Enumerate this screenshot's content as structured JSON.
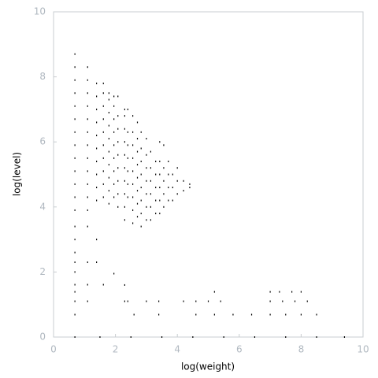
{
  "chart_data": {
    "type": "scatter",
    "x_label": "log(weight)",
    "y_label": "log(level)",
    "color": "#000000",
    "xlim": [
      0,
      10
    ],
    "ylim": [
      0,
      10
    ],
    "xticks": [
      0,
      2,
      4,
      6,
      8,
      10
    ],
    "yticks": [
      0,
      2,
      4,
      6,
      8,
      10
    ],
    "x": [
      0.69,
      0.69,
      0.69,
      0.69,
      0.69,
      0.69,
      0.69,
      0.69,
      0.69,
      0.69,
      0.69,
      0.69,
      0.69,
      0.69,
      0.69,
      0.69,
      0.69,
      0.69,
      0.69,
      0.69,
      0.69,
      0.69,
      1.1,
      1.1,
      1.1,
      1.1,
      1.1,
      1.1,
      1.1,
      1.1,
      1.1,
      1.1,
      1.1,
      1.1,
      1.1,
      1.1,
      1.1,
      1.1,
      1.39,
      1.39,
      1.39,
      1.39,
      1.39,
      1.39,
      1.39,
      1.39,
      1.39,
      1.39,
      1.39,
      1.39,
      1.61,
      1.61,
      1.61,
      1.61,
      1.61,
      1.61,
      1.61,
      1.61,
      1.61,
      1.61,
      1.61,
      1.79,
      1.79,
      1.79,
      1.79,
      1.79,
      1.79,
      1.79,
      1.79,
      1.79,
      1.79,
      1.95,
      1.95,
      1.95,
      1.95,
      1.95,
      1.95,
      1.95,
      1.95,
      1.95,
      1.95,
      2.08,
      2.08,
      2.08,
      2.08,
      2.08,
      2.08,
      2.08,
      2.08,
      2.08,
      2.3,
      2.3,
      2.3,
      2.3,
      2.3,
      2.3,
      2.3,
      2.3,
      2.3,
      2.3,
      2.4,
      2.4,
      2.4,
      2.4,
      2.4,
      2.4,
      2.4,
      2.4,
      2.56,
      2.56,
      2.56,
      2.56,
      2.56,
      2.56,
      2.56,
      2.56,
      2.56,
      2.71,
      2.71,
      2.71,
      2.71,
      2.71,
      2.71,
      2.71,
      2.71,
      2.83,
      2.83,
      2.83,
      2.83,
      2.83,
      2.83,
      2.83,
      2.83,
      3.0,
      3.0,
      3.0,
      3.0,
      3.0,
      3.0,
      3.0,
      3.14,
      3.14,
      3.14,
      3.14,
      3.14,
      3.14,
      3.3,
      3.3,
      3.3,
      3.3,
      3.3,
      3.43,
      3.43,
      3.43,
      3.43,
      3.43,
      3.43,
      3.56,
      3.56,
      3.56,
      3.56,
      3.56,
      3.71,
      3.71,
      3.71,
      3.71,
      3.85,
      3.85,
      3.85,
      4.0,
      4.0,
      4.0,
      4.2,
      4.2,
      4.4,
      4.4,
      2.3,
      2.3,
      3.0,
      3.4,
      4.2,
      4.6,
      5.0,
      5.4,
      5.2,
      7.0,
      7.3,
      7.7,
      8.0,
      7.0,
      7.4,
      7.8,
      8.2,
      7.0,
      7.5,
      8.0,
      8.5,
      4.6,
      5.2,
      5.8,
      6.4,
      2.6,
      3.4,
      0.69,
      1.5,
      2.5,
      3.5,
      4.5,
      5.5,
      6.5,
      7.5,
      8.5,
      9.4
    ],
    "values": [
      3.9,
      4.3,
      4.7,
      5.1,
      5.5,
      5.9,
      6.3,
      6.7,
      7.1,
      7.5,
      7.9,
      8.3,
      8.7,
      0.69,
      1.1,
      1.39,
      1.61,
      2.0,
      2.3,
      2.6,
      3.0,
      3.4,
      3.9,
      4.3,
      4.7,
      5.1,
      5.5,
      5.9,
      6.3,
      6.7,
      7.1,
      7.5,
      7.9,
      8.3,
      1.1,
      1.61,
      2.3,
      3.4,
      4.2,
      4.6,
      5.0,
      5.4,
      5.8,
      6.2,
      6.6,
      7.0,
      7.4,
      7.8,
      2.3,
      3.0,
      4.3,
      4.7,
      5.1,
      5.5,
      5.9,
      6.3,
      6.7,
      7.1,
      7.5,
      7.8,
      1.61,
      4.1,
      4.5,
      4.9,
      5.3,
      5.7,
      6.1,
      6.5,
      6.9,
      7.3,
      7.5,
      4.3,
      4.7,
      5.1,
      5.5,
      5.9,
      6.3,
      6.7,
      7.1,
      7.4,
      1.95,
      4.0,
      4.4,
      4.8,
      5.2,
      5.6,
      6.0,
      6.4,
      6.8,
      7.4,
      3.6,
      4.0,
      4.4,
      4.8,
      5.2,
      5.6,
      6.0,
      6.4,
      6.8,
      7.0,
      4.3,
      4.7,
      5.1,
      5.5,
      5.9,
      6.3,
      7.0,
      1.1,
      3.5,
      3.9,
      4.3,
      4.7,
      5.1,
      5.5,
      5.9,
      6.3,
      6.8,
      3.7,
      4.1,
      4.5,
      4.9,
      5.3,
      5.7,
      6.1,
      6.6,
      3.4,
      3.8,
      4.2,
      4.6,
      5.0,
      5.4,
      5.8,
      6.3,
      3.6,
      4.0,
      4.4,
      4.8,
      5.2,
      5.6,
      6.1,
      3.6,
      4.0,
      4.4,
      4.8,
      5.2,
      5.7,
      3.8,
      4.2,
      4.6,
      5.0,
      5.4,
      3.8,
      4.2,
      4.6,
      5.0,
      5.4,
      6.0,
      4.0,
      4.4,
      4.8,
      5.2,
      5.9,
      4.2,
      4.6,
      5.0,
      5.4,
      4.2,
      4.6,
      5.0,
      4.4,
      4.8,
      5.2,
      4.5,
      4.8,
      4.6,
      4.7,
      1.6,
      1.1,
      1.1,
      1.1,
      1.1,
      1.1,
      1.1,
      1.1,
      1.39,
      1.39,
      1.39,
      1.39,
      1.39,
      1.1,
      1.1,
      1.1,
      1.1,
      0.69,
      0.69,
      0.69,
      0.69,
      0.69,
      0.69,
      0.69,
      0.69,
      0.69,
      0.69,
      0,
      0,
      0,
      0,
      0,
      0,
      0,
      0,
      0,
      0
    ]
  }
}
